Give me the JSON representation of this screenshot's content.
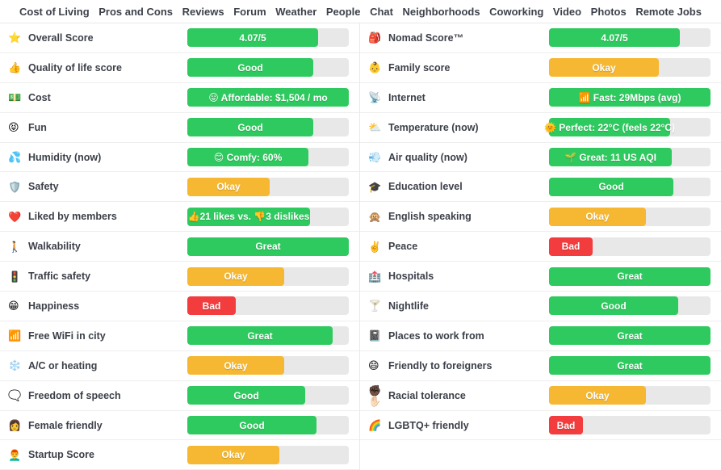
{
  "nav": {
    "items": [
      "Cost of Living",
      "Pros and Cons",
      "Reviews",
      "Forum",
      "Weather",
      "People",
      "Chat",
      "Neighborhoods",
      "Coworking",
      "Video",
      "Photos",
      "Remote Jobs"
    ]
  },
  "colors": {
    "green": "#2fca5f",
    "orange": "#f6b832",
    "red": "#f23c3d",
    "track": "#e8e8e8"
  },
  "scores": {
    "left": [
      {
        "label": "Overall Score",
        "icon": "star-icon",
        "glyph": "⭐",
        "value": "4.07/5",
        "color": "green",
        "percent": 81
      },
      {
        "label": "Quality of life score",
        "icon": "thumbs-up-icon",
        "glyph": "👍",
        "value": "Good",
        "color": "green",
        "percent": 78
      },
      {
        "label": "Cost",
        "icon": "money-icon",
        "glyph": "💵",
        "value": "😛 Affordable: $1,504 / mo",
        "color": "green",
        "percent": 100
      },
      {
        "label": "Fun",
        "icon": "laughing-face-icon",
        "glyph": "😝",
        "value": "Good",
        "color": "green",
        "percent": 78
      },
      {
        "label": "Humidity (now)",
        "icon": "sweat-drops-icon",
        "glyph": "💦",
        "value": "😊 Comfy: 60%",
        "color": "green",
        "percent": 75
      },
      {
        "label": "Safety",
        "icon": "shield-icon",
        "glyph": "🛡️",
        "value": "Okay",
        "color": "orange",
        "percent": 51
      },
      {
        "label": "Liked by members",
        "icon": "heart-icon",
        "glyph": "❤️",
        "value": "👍21 likes vs. 👎3 dislikes",
        "color": "green",
        "percent": 76
      },
      {
        "label": "Walkability",
        "icon": "pedestrian-icon",
        "glyph": "🚶",
        "value": "Great",
        "color": "green",
        "percent": 100
      },
      {
        "label": "Traffic safety",
        "icon": "traffic-light-icon",
        "glyph": "🚦",
        "value": "Okay",
        "color": "orange",
        "percent": 60
      },
      {
        "label": "Happiness",
        "icon": "grinning-face-icon",
        "glyph": "😁",
        "value": "Bad",
        "color": "red",
        "percent": 30
      },
      {
        "label": "Free WiFi in city",
        "icon": "signal-bars-icon",
        "glyph": "📶",
        "value": "Great",
        "color": "green",
        "percent": 90
      },
      {
        "label": "A/C or heating",
        "icon": "snowflake-icon",
        "glyph": "❄️",
        "value": "Okay",
        "color": "orange",
        "percent": 60
      },
      {
        "label": "Freedom of speech",
        "icon": "speech-bubble-icon",
        "glyph": "🗨️",
        "value": "Good",
        "color": "green",
        "percent": 73
      },
      {
        "label": "Female friendly",
        "icon": "woman-icon",
        "glyph": "👩",
        "value": "Good",
        "color": "green",
        "percent": 80
      },
      {
        "label": "Startup Score",
        "icon": "founder-icon",
        "glyph": "👨‍🦰",
        "value": "Okay",
        "color": "orange",
        "percent": 57
      }
    ],
    "right": [
      {
        "label": "Nomad Score™",
        "icon": "backpack-icon",
        "glyph": "🎒",
        "value": "4.07/5",
        "color": "green",
        "percent": 81
      },
      {
        "label": "Family score",
        "icon": "baby-icon",
        "glyph": "👶",
        "value": "Okay",
        "color": "orange",
        "percent": 68
      },
      {
        "label": "Internet",
        "icon": "satellite-antenna-icon",
        "glyph": "📡",
        "value": "📶 Fast: 29Mbps (avg)",
        "color": "green",
        "percent": 100
      },
      {
        "label": "Temperature (now)",
        "icon": "sun-behind-cloud-icon",
        "glyph": "⛅",
        "value": "🌞 Perfect: 22°C (feels 22°C)",
        "color": "green",
        "percent": 75
      },
      {
        "label": "Air quality (now)",
        "icon": "wind-icon",
        "glyph": "💨",
        "value": "🌱 Great: 11 US AQI",
        "color": "green",
        "percent": 76
      },
      {
        "label": "Education level",
        "icon": "graduation-cap-icon",
        "glyph": "🎓",
        "value": "Good",
        "color": "green",
        "percent": 77
      },
      {
        "label": "English speaking",
        "icon": "speak-no-evil-monkey-icon",
        "glyph": "🙊",
        "value": "Okay",
        "color": "orange",
        "percent": 60
      },
      {
        "label": "Peace",
        "icon": "victory-hand-icon",
        "glyph": "✌️",
        "value": "Bad",
        "color": "red",
        "percent": 27
      },
      {
        "label": "Hospitals",
        "icon": "hospital-icon",
        "glyph": "🏥",
        "value": "Great",
        "color": "green",
        "percent": 100
      },
      {
        "label": "Nightlife",
        "icon": "cocktail-icon",
        "glyph": "🍸",
        "value": "Good",
        "color": "green",
        "percent": 80
      },
      {
        "label": "Places to work from",
        "icon": "notebook-icon",
        "glyph": "📓",
        "value": "Great",
        "color": "green",
        "percent": 100
      },
      {
        "label": "Friendly to foreigners",
        "icon": "smiling-face-icon",
        "glyph": "😄",
        "value": "Great",
        "color": "green",
        "percent": 100
      },
      {
        "label": "Racial tolerance",
        "icon": "fist-and-hand-icon",
        "glyph": "✊🏿✋🏻",
        "value": "Okay",
        "color": "orange",
        "percent": 60
      },
      {
        "label": "LGBTQ+ friendly",
        "icon": "rainbow-icon",
        "glyph": "🌈",
        "value": "Bad",
        "color": "red",
        "percent": 21
      }
    ]
  }
}
